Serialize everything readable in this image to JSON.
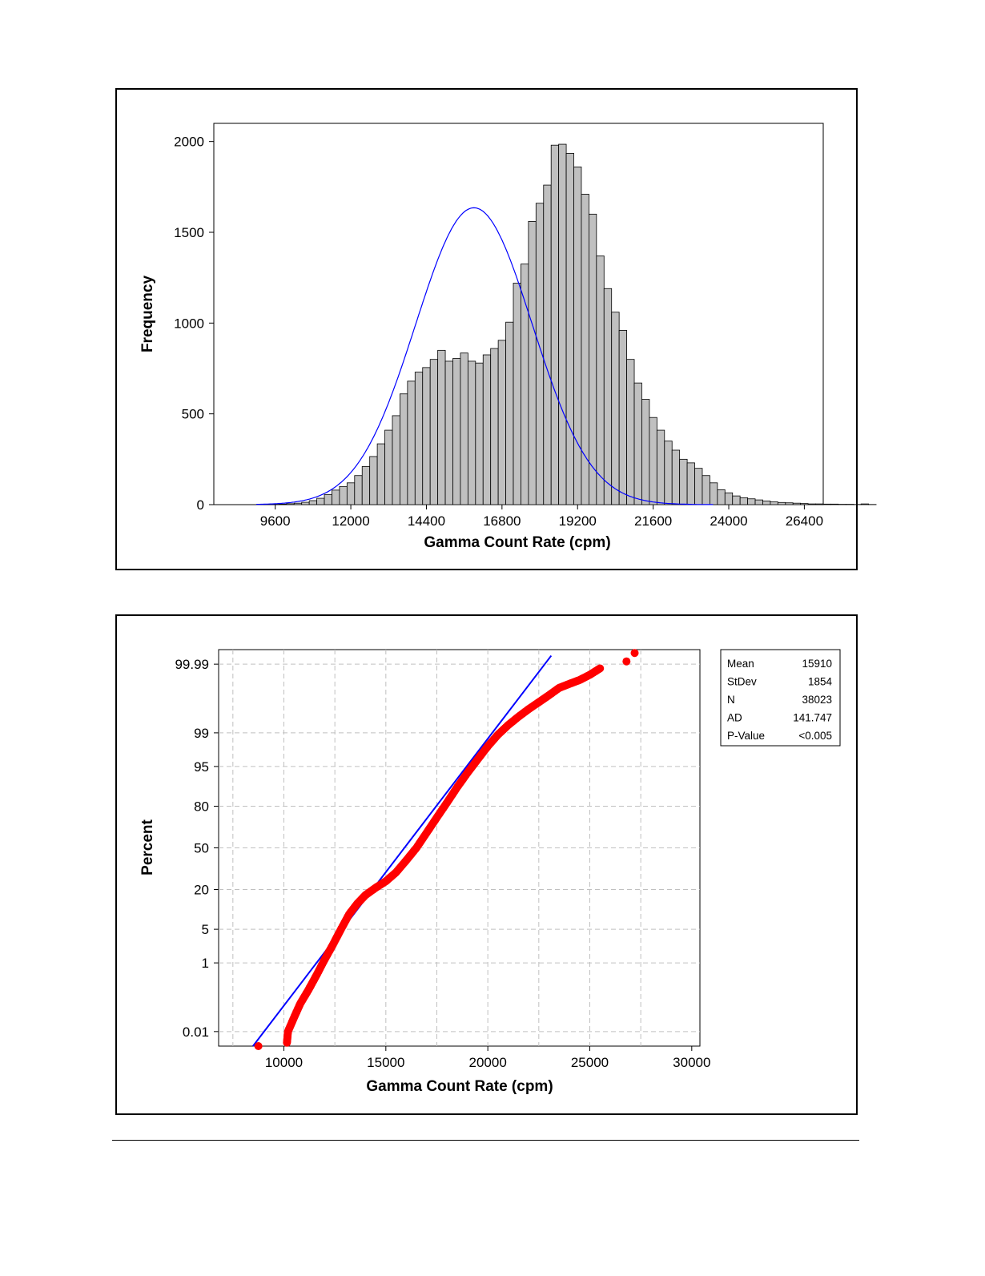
{
  "charts": [
    {
      "type": "bar",
      "subtype": "histogram-with-normal-fit",
      "title": "",
      "xlabel": "Gamma Count Rate (cpm)",
      "ylabel": "Frequency",
      "xticks": [
        9600,
        12000,
        14400,
        16800,
        19200,
        21600,
        24000,
        26400
      ],
      "yticks": [
        0,
        500,
        1000,
        1500,
        2000
      ],
      "xlim": [
        7650,
        27000
      ],
      "ylim": [
        0,
        2100
      ],
      "bar_width": 240,
      "bar_start": 9480,
      "bar_color": "#c0c0c0",
      "fit_color": "#0000ff",
      "fit": {
        "mean": 15910,
        "stdev": 1854,
        "peak": 1635
      },
      "values": [
        2,
        3,
        5,
        8,
        13,
        22,
        35,
        55,
        80,
        100,
        120,
        160,
        210,
        265,
        335,
        410,
        490,
        610,
        680,
        730,
        755,
        800,
        850,
        790,
        805,
        835,
        790,
        780,
        825,
        860,
        905,
        1005,
        1220,
        1325,
        1560,
        1660,
        1760,
        1980,
        1985,
        1935,
        1860,
        1710,
        1600,
        1370,
        1190,
        1060,
        960,
        800,
        670,
        580,
        480,
        410,
        350,
        300,
        250,
        230,
        200,
        160,
        120,
        82,
        65,
        48,
        38,
        32,
        26,
        20,
        15,
        12,
        10,
        8,
        6,
        4,
        4,
        3,
        3,
        2,
        2,
        1,
        4,
        1
      ]
    },
    {
      "type": "scatter",
      "subtype": "normal-probability-plot",
      "title": "",
      "xlabel": "Gamma Count Rate (cpm)",
      "ylabel": "Percent",
      "xticks": [
        10000,
        15000,
        20000,
        25000,
        30000
      ],
      "xlim": [
        6800,
        30400
      ],
      "yticks": [
        "0.01",
        "1",
        "5",
        "20",
        "50",
        "80",
        "95",
        "99",
        "99.99"
      ],
      "yticks_percent": [
        0.01,
        1,
        5,
        20,
        50,
        80,
        95,
        99,
        99.99
      ],
      "ylim_percent": [
        0.003,
        99.997
      ],
      "grid": true,
      "point_color": "#ff0000",
      "line_color": "#0000ff",
      "reference_line": {
        "mean": 15910,
        "stdev": 1854
      },
      "points": [
        [
          8750,
          0.003
        ],
        [
          10150,
          0.004
        ],
        [
          10200,
          0.01
        ],
        [
          10500,
          0.03
        ],
        [
          10800,
          0.08
        ],
        [
          11200,
          0.2
        ],
        [
          11600,
          0.5
        ],
        [
          12000,
          1.2
        ],
        [
          12400,
          2.5
        ],
        [
          12800,
          5
        ],
        [
          13200,
          9
        ],
        [
          13600,
          13
        ],
        [
          14000,
          17
        ],
        [
          14500,
          21
        ],
        [
          15000,
          25
        ],
        [
          15500,
          31
        ],
        [
          16000,
          40
        ],
        [
          16500,
          50
        ],
        [
          17000,
          62
        ],
        [
          17500,
          73
        ],
        [
          18000,
          82
        ],
        [
          18500,
          89
        ],
        [
          19000,
          93.5
        ],
        [
          19500,
          96.3
        ],
        [
          20000,
          98
        ],
        [
          20500,
          98.9
        ],
        [
          21000,
          99.35
        ],
        [
          21500,
          99.6
        ],
        [
          22000,
          99.75
        ],
        [
          22500,
          99.84
        ],
        [
          23000,
          99.9
        ],
        [
          23500,
          99.94
        ],
        [
          24000,
          99.955
        ],
        [
          24500,
          99.966
        ],
        [
          25000,
          99.977
        ],
        [
          25500,
          99.986
        ],
        [
          26800,
          99.992
        ],
        [
          27200,
          99.996
        ]
      ],
      "stats": [
        {
          "label": "Mean",
          "value": "15910"
        },
        {
          "label": "StDev",
          "value": "1854"
        },
        {
          "label": "N",
          "value": "38023"
        },
        {
          "label": "AD",
          "value": "141.747"
        },
        {
          "label": "P-Value",
          "value": "<0.005"
        }
      ]
    }
  ]
}
